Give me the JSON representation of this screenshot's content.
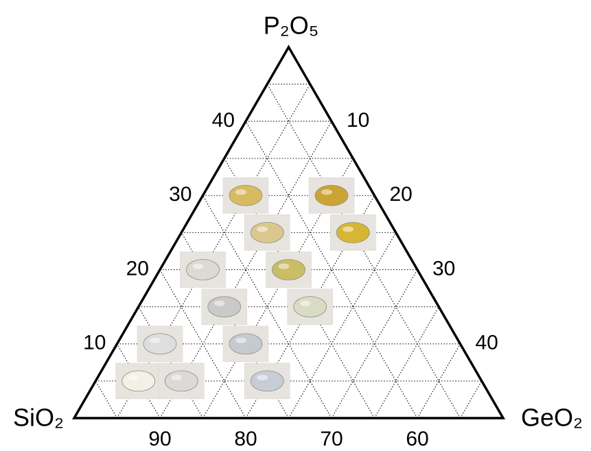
{
  "chart_data": {
    "type": "ternary",
    "axis_labels": {
      "top": "P₂O₅",
      "left": "SiO₂",
      "right": "GeO₂"
    },
    "p2o5lim": [
      0,
      50
    ],
    "geo2lim": [
      0,
      50
    ],
    "sio2lim": [
      50,
      100
    ],
    "p2o5ticks": [
      10,
      20,
      30,
      40
    ],
    "geo2ticks": [
      10,
      20,
      30,
      40
    ],
    "sio2ticks": [
      90,
      80,
      70,
      60
    ],
    "grid": true,
    "samples": {
      "p2o5": [
        30,
        30,
        25,
        25,
        20,
        20,
        15,
        15,
        10,
        10,
        5,
        5,
        5
      ],
      "geo2": [
        5,
        15,
        10,
        20,
        5,
        15,
        10,
        20,
        5,
        15,
        5,
        10,
        20
      ],
      "colors": [
        "#d8b95a",
        "#c9a12c",
        "#d9c68a",
        "#d6b42a",
        "#dcdad2",
        "#c8bd5e",
        "#c9c9c9",
        "#d9dcc4",
        "#dedede",
        "#c4c8d0",
        "#f4f1e6",
        "#dcdad8",
        "#c6ccd6"
      ]
    }
  }
}
